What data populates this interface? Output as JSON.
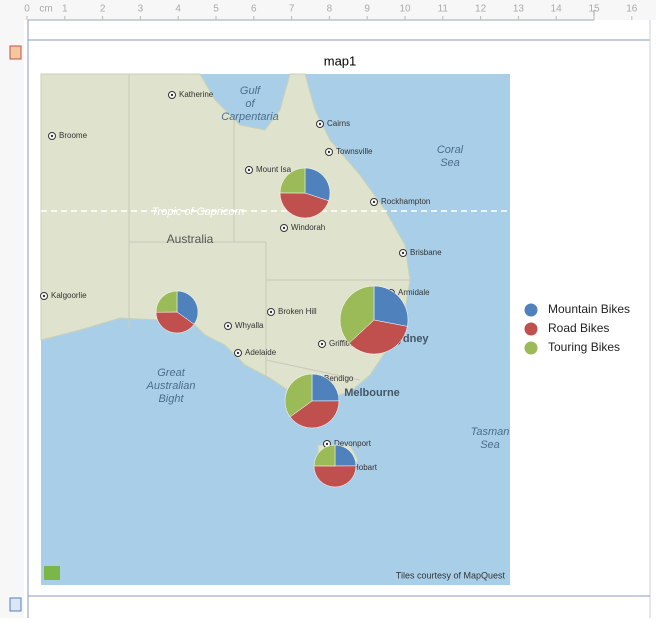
{
  "ruler": {
    "unit": "cm",
    "ticks": [
      0,
      1,
      2,
      3,
      4,
      5,
      6,
      7,
      8,
      9,
      10,
      11,
      12,
      13,
      14,
      15,
      16
    ]
  },
  "map": {
    "title": "map1",
    "places": [
      "Katherine",
      "Gulf of Carpentaria",
      "Broome",
      "Cairns",
      "Townsville",
      "Coral Sea",
      "Mount Isa",
      "Rockhampton",
      "Tropic of Capricorn",
      "Australia",
      "Windorah",
      "Brisbane",
      "Kalgoorlie",
      "Armidale",
      "Broken Hill",
      "Whyalla",
      "Adelaide",
      "Griffith",
      "Sydney",
      "Great Australian Bight",
      "Bendigo",
      "Melbourne",
      "Devonport",
      "Hobart",
      "Tasman Sea"
    ],
    "credit": "Tiles courtesy of MapQuest",
    "series": [
      {
        "name": "Mountain Bikes",
        "color": "#4f81bd"
      },
      {
        "name": "Road Bikes",
        "color": "#c0504d"
      },
      {
        "name": "Touring Bikes",
        "color": "#9bbb59"
      }
    ],
    "pies": [
      [
        188,
        281,
        156
      ],
      [
        154,
        176,
        111
      ],
      [
        324,
        405,
        427
      ],
      [
        182,
        292,
        255
      ],
      [
        110,
        221,
        110
      ]
    ]
  }
}
